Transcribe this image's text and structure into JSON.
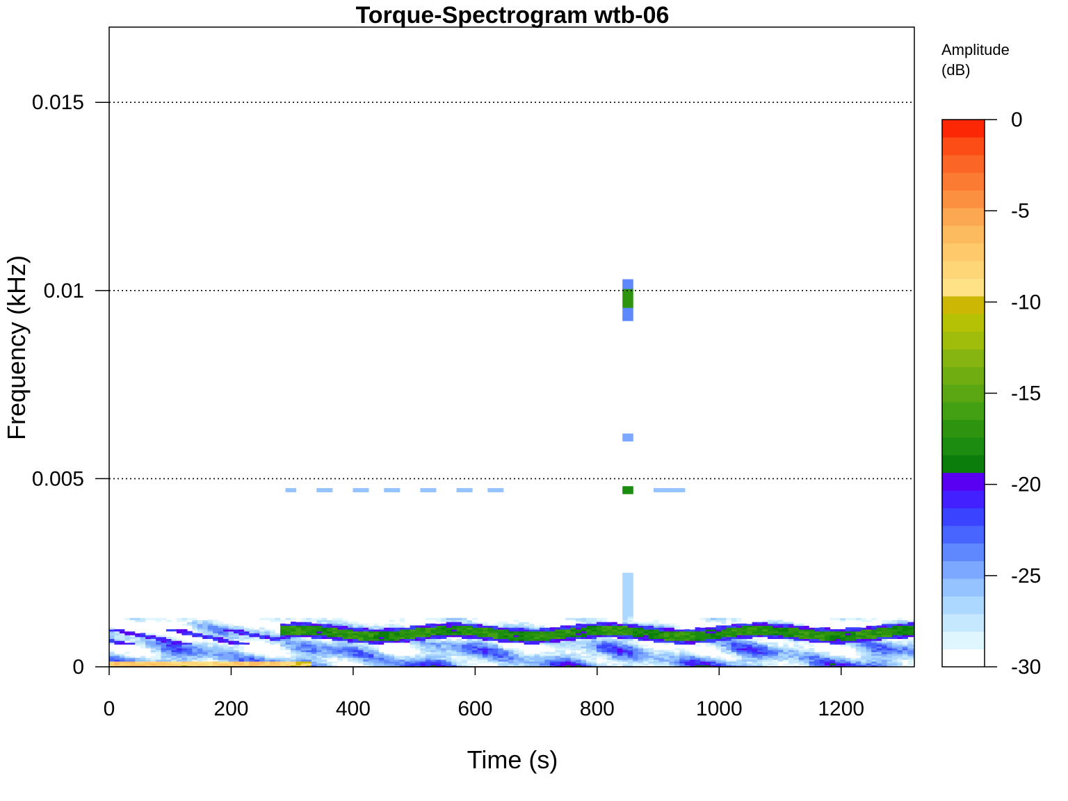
{
  "chart_data": {
    "type": "heatmap",
    "title": "Torque-Spectrogram wtb-06",
    "xlabel": "Time (s)",
    "ylabel": "Frequency (kHz)",
    "xlim": [
      0,
      1320
    ],
    "ylim": [
      0,
      0.017
    ],
    "x_ticks": [
      0,
      200,
      400,
      600,
      800,
      1000,
      1200
    ],
    "x_tick_labels": [
      "0",
      "200",
      "400",
      "600",
      "800",
      "1000",
      "1200"
    ],
    "y_ticks": [
      0,
      0.005,
      0.01,
      0.015
    ],
    "y_tick_labels": [
      "0",
      "0.005",
      "0.01",
      "0.015"
    ],
    "grid": "horizontal dotted lines at labeled y ticks",
    "colorbar": {
      "title_line1": "Amplitude",
      "title_line2": "(dB)",
      "range": [
        -30,
        0
      ],
      "ticks": [
        0,
        -5,
        -10,
        -15,
        -20,
        -25,
        -30
      ],
      "tick_labels": [
        "0",
        "-5",
        "-10",
        "-15",
        "-20",
        "-25",
        "-30"
      ],
      "bins_from_low": [
        "#ffffff",
        "#e0f6ff",
        "#c6e8ff",
        "#acd7ff",
        "#94c3ff",
        "#7ca8ff",
        "#5f88ff",
        "#4865ff",
        "#3a43ff",
        "#4320ff",
        "#5a00f2",
        "#0a7d0a",
        "#1b8c10",
        "#2e9410",
        "#43a013",
        "#5aa713",
        "#70ad10",
        "#86b410",
        "#9fbd0a",
        "#b5c105",
        "#ccb804",
        "#ffe285",
        "#fed577",
        "#fec96b",
        "#fdbb5f",
        "#fca751",
        "#fb9140",
        "#fc7b33",
        "#fb6526",
        "#fc4d16",
        "#fc2805"
      ]
    },
    "features": [
      {
        "desc": "broad low-frequency band",
        "time_range": [
          0,
          1320
        ],
        "freq_range": [
          0,
          0.0013
        ],
        "level_db": [
          -28,
          -20
        ]
      },
      {
        "desc": "green ridge",
        "time_range": [
          280,
          1320
        ],
        "freq": 0.0009,
        "level_db": -17
      },
      {
        "desc": "warm strip at bottom edge",
        "time_range": [
          0,
          330
        ],
        "freq": 0.0001,
        "level_db": -8
      },
      {
        "desc": "vertical burst at ~850 s",
        "time": 850,
        "freq_range": [
          0.0002,
          0.0107
        ]
      },
      {
        "desc": "spot",
        "time": 850,
        "freq": 0.0098,
        "level_db": -17
      },
      {
        "desc": "spot",
        "time": 850,
        "freq": 0.0047,
        "level_db": -18
      },
      {
        "desc": "spot",
        "time": 850,
        "freq": 0.0061,
        "level_db": -25
      },
      {
        "desc": "faint line",
        "time_range": [
          290,
          650
        ],
        "freq": 0.0047,
        "level_db": -26
      },
      {
        "desc": "faint line",
        "time_range": [
          890,
          940
        ],
        "freq": 0.0047,
        "level_db": -24
      }
    ]
  }
}
